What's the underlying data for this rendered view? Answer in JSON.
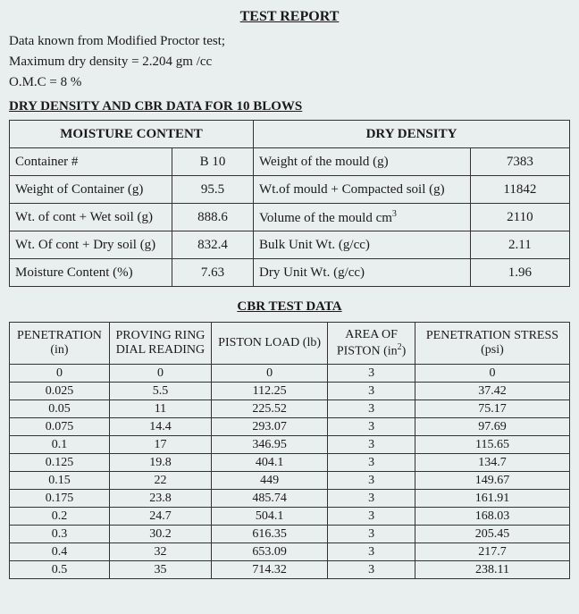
{
  "title": "TEST REPORT",
  "intro": {
    "line1": "Data known from Modified Proctor test;",
    "line2": "Maximum dry density = 2.204 gm /cc",
    "line3": "O.M.C = 8 %"
  },
  "section1_heading": "DRY DENSITY AND CBR DATA FOR 10 BLOWS",
  "table1": {
    "head_left": "MOISTURE CONTENT",
    "head_right": "DRY DENSITY",
    "rows": [
      {
        "l_label": "Container #",
        "l_val": "B 10",
        "r_label": "Weight of the mould (g)",
        "r_val": "7383"
      },
      {
        "l_label": "Weight of Container (g)",
        "l_val": "95.5",
        "r_label": "Wt.of mould + Compacted soil (g)",
        "r_val": "11842"
      },
      {
        "l_label": "Wt. of cont + Wet soil (g)",
        "l_val": "888.6",
        "r_label_html": "Volume of the mould cm",
        "r_label_sup": "3",
        "r_val": "2110"
      },
      {
        "l_label": "Wt. Of cont + Dry soil (g)",
        "l_val": "832.4",
        "r_label": "Bulk Unit Wt.  (g/cc)",
        "r_val": "2.11"
      },
      {
        "l_label": "Moisture Content (%)",
        "l_val": "7.63",
        "r_label": "Dry Unit Wt. (g/cc)",
        "r_val": "1.96"
      }
    ],
    "col_widths": [
      "180px",
      "90px",
      "240px",
      "110px"
    ]
  },
  "section2_heading": "CBR TEST DATA",
  "table2": {
    "headers": [
      "PENETRATION (in)",
      "PROVING RING DIAL READING",
      "PISTON LOAD (lb)",
      "AREA OF PISTON (in",
      "PENETRATION STRESS (psi)"
    ],
    "header_area_sup": "2",
    "header_area_tail": ")",
    "col_widths": [
      "110px",
      "112px",
      "128px",
      "96px",
      "170px"
    ],
    "rows": [
      [
        "0",
        "0",
        "0",
        "3",
        "0"
      ],
      [
        "0.025",
        "5.5",
        "112.25",
        "3",
        "37.42"
      ],
      [
        "0.05",
        "11",
        "225.52",
        "3",
        "75.17"
      ],
      [
        "0.075",
        "14.4",
        "293.07",
        "3",
        "97.69"
      ],
      [
        "0.1",
        "17",
        "346.95",
        "3",
        "115.65"
      ],
      [
        "0.125",
        "19.8",
        "404.1",
        "3",
        "134.7"
      ],
      [
        "0.15",
        "22",
        "449",
        "3",
        "149.67"
      ],
      [
        "0.175",
        "23.8",
        "485.74",
        "3",
        "161.91"
      ],
      [
        "0.2",
        "24.7",
        "504.1",
        "3",
        "168.03"
      ],
      [
        "0.3",
        "30.2",
        "616.35",
        "3",
        "205.45"
      ],
      [
        "0.4",
        "32",
        "653.09",
        "3",
        "217.7"
      ],
      [
        "0.5",
        "35",
        "714.32",
        "3",
        "238.11"
      ]
    ]
  },
  "style": {
    "background_color": "#e9eeee",
    "border_color": "#333333",
    "text_color": "#1a1a1a",
    "font_family": "Times New Roman",
    "title_fontsize_pt": 12,
    "body_fontsize_pt": 11,
    "cell_fontsize_pt": 11
  }
}
